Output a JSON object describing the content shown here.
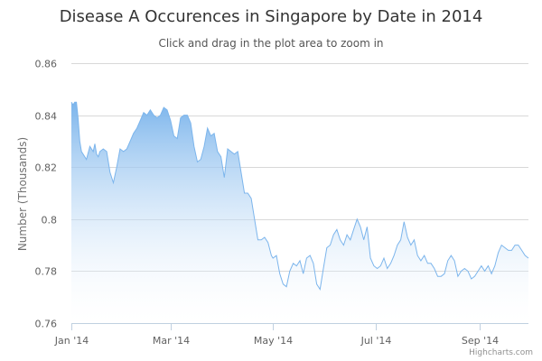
{
  "chart_data": {
    "type": "area",
    "title": "Disease A Occurences in Singapore by Date in 2014",
    "subtitle": "Click and drag in the plot area to zoom in",
    "xlabel": "",
    "ylabel": "Number (Thousands)",
    "xlim": [
      "2014-01-01",
      "2014-09-30"
    ],
    "ylim": [
      0.76,
      0.86
    ],
    "x_ticks": [
      {
        "date": "2014-01-01",
        "label": "Jan '14"
      },
      {
        "date": "2014-03-01",
        "label": "Mar '14"
      },
      {
        "date": "2014-05-01",
        "label": "May '14"
      },
      {
        "date": "2014-07-01",
        "label": "Jul '14"
      },
      {
        "date": "2014-09-01",
        "label": "Sep '14"
      }
    ],
    "y_ticks": [
      0.76,
      0.78,
      0.8,
      0.82,
      0.84,
      0.86
    ],
    "y_tick_labels": [
      "0.76",
      "0.78",
      "0.8",
      "0.82",
      "0.84",
      "0.86"
    ],
    "grid": true,
    "legend": false,
    "colors": {
      "line": "#7cb5ec",
      "fill_top": "#7cb5ec",
      "fill_bottom": "#ffffff",
      "grid": "#d8d8d8"
    },
    "series": [
      {
        "x": [
          "2014-01-01",
          "2014-01-02",
          "2014-01-03",
          "2014-01-04",
          "2014-01-05",
          "2014-01-06",
          "2014-01-07",
          "2014-01-08",
          "2014-01-10",
          "2014-01-12",
          "2014-01-14",
          "2014-01-15",
          "2014-01-16",
          "2014-01-17",
          "2014-01-18",
          "2014-01-20",
          "2014-01-22",
          "2014-01-24",
          "2014-01-26",
          "2014-01-28",
          "2014-01-30",
          "2014-02-01",
          "2014-02-03",
          "2014-02-05",
          "2014-02-07",
          "2014-02-09",
          "2014-02-11",
          "2014-02-13",
          "2014-02-15",
          "2014-02-17",
          "2014-02-19",
          "2014-02-21",
          "2014-02-23",
          "2014-02-25",
          "2014-02-27",
          "2014-03-01",
          "2014-03-03",
          "2014-03-05",
          "2014-03-07",
          "2014-03-09",
          "2014-03-11",
          "2014-03-13",
          "2014-03-15",
          "2014-03-17",
          "2014-03-19",
          "2014-03-21",
          "2014-03-23",
          "2014-03-25",
          "2014-03-27",
          "2014-03-29",
          "2014-03-31",
          "2014-04-02",
          "2014-04-04",
          "2014-04-06",
          "2014-04-08",
          "2014-04-10",
          "2014-04-12",
          "2014-04-14",
          "2014-04-16",
          "2014-04-18",
          "2014-04-20",
          "2014-04-22",
          "2014-04-24",
          "2014-04-26",
          "2014-04-28",
          "2014-04-30",
          "2014-05-01",
          "2014-05-03",
          "2014-05-05",
          "2014-05-07",
          "2014-05-09",
          "2014-05-11",
          "2014-05-13",
          "2014-05-15",
          "2014-05-17",
          "2014-05-19",
          "2014-05-21",
          "2014-05-23",
          "2014-05-25",
          "2014-05-27",
          "2014-05-29",
          "2014-05-31",
          "2014-06-02",
          "2014-06-04",
          "2014-06-06",
          "2014-06-08",
          "2014-06-10",
          "2014-06-12",
          "2014-06-14",
          "2014-06-16",
          "2014-06-18",
          "2014-06-20",
          "2014-06-22",
          "2014-06-24",
          "2014-06-26",
          "2014-06-28",
          "2014-06-30",
          "2014-07-02",
          "2014-07-04",
          "2014-07-06",
          "2014-07-08",
          "2014-07-10",
          "2014-07-12",
          "2014-07-14",
          "2014-07-16",
          "2014-07-18",
          "2014-07-20",
          "2014-07-22",
          "2014-07-24",
          "2014-07-26",
          "2014-07-28",
          "2014-07-30",
          "2014-08-01",
          "2014-08-03",
          "2014-08-05",
          "2014-08-07",
          "2014-08-09",
          "2014-08-11",
          "2014-08-13",
          "2014-08-15",
          "2014-08-17",
          "2014-08-19",
          "2014-08-21",
          "2014-08-23",
          "2014-08-25",
          "2014-08-27",
          "2014-08-29",
          "2014-08-31",
          "2014-09-02",
          "2014-09-04",
          "2014-09-06",
          "2014-09-08",
          "2014-09-10",
          "2014-09-12",
          "2014-09-14",
          "2014-09-16",
          "2014-09-18",
          "2014-09-20",
          "2014-09-22",
          "2014-09-24",
          "2014-09-26",
          "2014-09-28",
          "2014-09-30"
        ],
        "values": [
          0.845,
          0.844,
          0.845,
          0.845,
          0.839,
          0.83,
          0.826,
          0.825,
          0.823,
          0.828,
          0.826,
          0.829,
          0.825,
          0.824,
          0.826,
          0.827,
          0.826,
          0.818,
          0.814,
          0.82,
          0.827,
          0.826,
          0.827,
          0.83,
          0.833,
          0.835,
          0.838,
          0.841,
          0.84,
          0.842,
          0.84,
          0.839,
          0.84,
          0.843,
          0.842,
          0.838,
          0.832,
          0.831,
          0.839,
          0.84,
          0.84,
          0.837,
          0.828,
          0.822,
          0.823,
          0.828,
          0.835,
          0.832,
          0.833,
          0.826,
          0.824,
          0.816,
          0.827,
          0.826,
          0.825,
          0.826,
          0.818,
          0.81,
          0.81,
          0.808,
          0.8,
          0.792,
          0.792,
          0.793,
          0.791,
          0.786,
          0.785,
          0.786,
          0.779,
          0.775,
          0.774,
          0.78,
          0.783,
          0.782,
          0.784,
          0.779,
          0.785,
          0.786,
          0.783,
          0.775,
          0.773,
          0.781,
          0.789,
          0.79,
          0.794,
          0.796,
          0.792,
          0.79,
          0.794,
          0.792,
          0.796,
          0.8,
          0.797,
          0.792,
          0.797,
          0.785,
          0.782,
          0.781,
          0.782,
          0.785,
          0.781,
          0.783,
          0.786,
          0.79,
          0.792,
          0.799,
          0.793,
          0.79,
          0.792,
          0.786,
          0.784,
          0.786,
          0.783,
          0.783,
          0.781,
          0.778,
          0.778,
          0.779,
          0.784,
          0.786,
          0.784,
          0.778,
          0.78,
          0.781,
          0.78,
          0.777,
          0.778,
          0.78,
          0.782,
          0.78,
          0.782,
          0.779,
          0.782,
          0.787,
          0.79,
          0.789,
          0.788,
          0.788,
          0.79,
          0.79,
          0.788,
          0.786,
          0.785
        ]
      }
    ]
  },
  "credits": "Highcharts.com"
}
